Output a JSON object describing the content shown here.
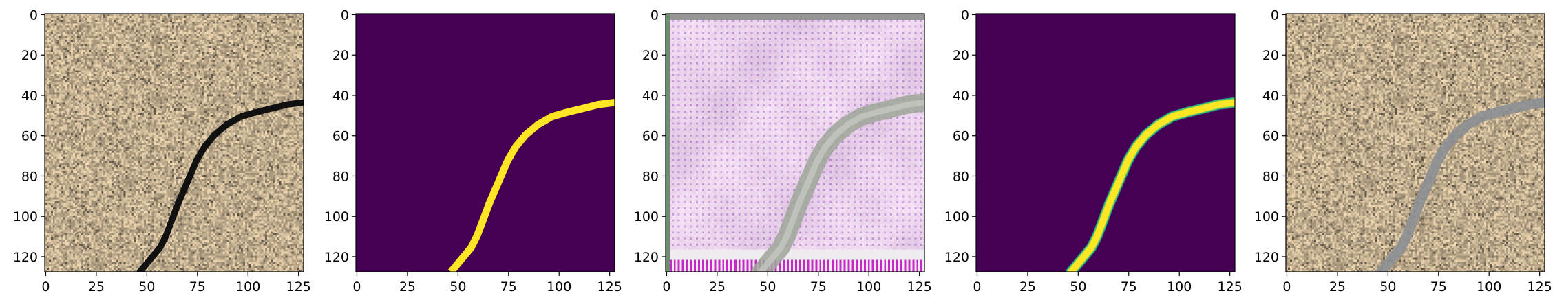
{
  "panels": [
    {
      "id": "input-image",
      "content": "photo",
      "x_ticks": [
        "0",
        "25",
        "50",
        "75",
        "100",
        "125"
      ],
      "y_ticks": [
        "0",
        "20",
        "40",
        "60",
        "80",
        "100",
        "120"
      ]
    },
    {
      "id": "ground-truth-mask",
      "content": "binary-mask",
      "x_ticks": [
        "0",
        "25",
        "50",
        "75",
        "100",
        "125"
      ],
      "y_ticks": [
        "0",
        "20",
        "40",
        "60",
        "80",
        "100",
        "120"
      ]
    },
    {
      "id": "reconstruction",
      "content": "noisy-reconstruction",
      "x_ticks": [
        "0",
        "25",
        "50",
        "75",
        "100",
        "125"
      ],
      "y_ticks": [
        "0",
        "20",
        "40",
        "60",
        "80",
        "100",
        "120"
      ]
    },
    {
      "id": "predicted-mask",
      "content": "soft-mask",
      "x_ticks": [
        "0",
        "25",
        "50",
        "75",
        "100",
        "125"
      ],
      "y_ticks": [
        "0",
        "20",
        "40",
        "60",
        "80",
        "100",
        "120"
      ]
    },
    {
      "id": "overlay",
      "content": "overlay-photo",
      "x_ticks": [
        "0",
        "25",
        "50",
        "75",
        "100",
        "125"
      ],
      "y_ticks": [
        "0",
        "20",
        "40",
        "60",
        "80",
        "100",
        "120"
      ]
    }
  ],
  "image_extent": [
    0,
    128
  ],
  "crack_path": [
    [
      47,
      128
    ],
    [
      52,
      122
    ],
    [
      57,
      116
    ],
    [
      60,
      110
    ],
    [
      63,
      102
    ],
    [
      66,
      94
    ],
    [
      69,
      87
    ],
    [
      72,
      80
    ],
    [
      75,
      73
    ],
    [
      79,
      66
    ],
    [
      84,
      60
    ],
    [
      90,
      55
    ],
    [
      97,
      51
    ],
    [
      104,
      49
    ],
    [
      112,
      47
    ],
    [
      120,
      45
    ],
    [
      128,
      44
    ]
  ],
  "colors": {
    "mask_background": "#440154",
    "mask_foreground": "#fde725",
    "sand": "#c9b79b",
    "crack": "#111111",
    "overlay_crack": "#8c8f93",
    "axis": "#000000"
  }
}
